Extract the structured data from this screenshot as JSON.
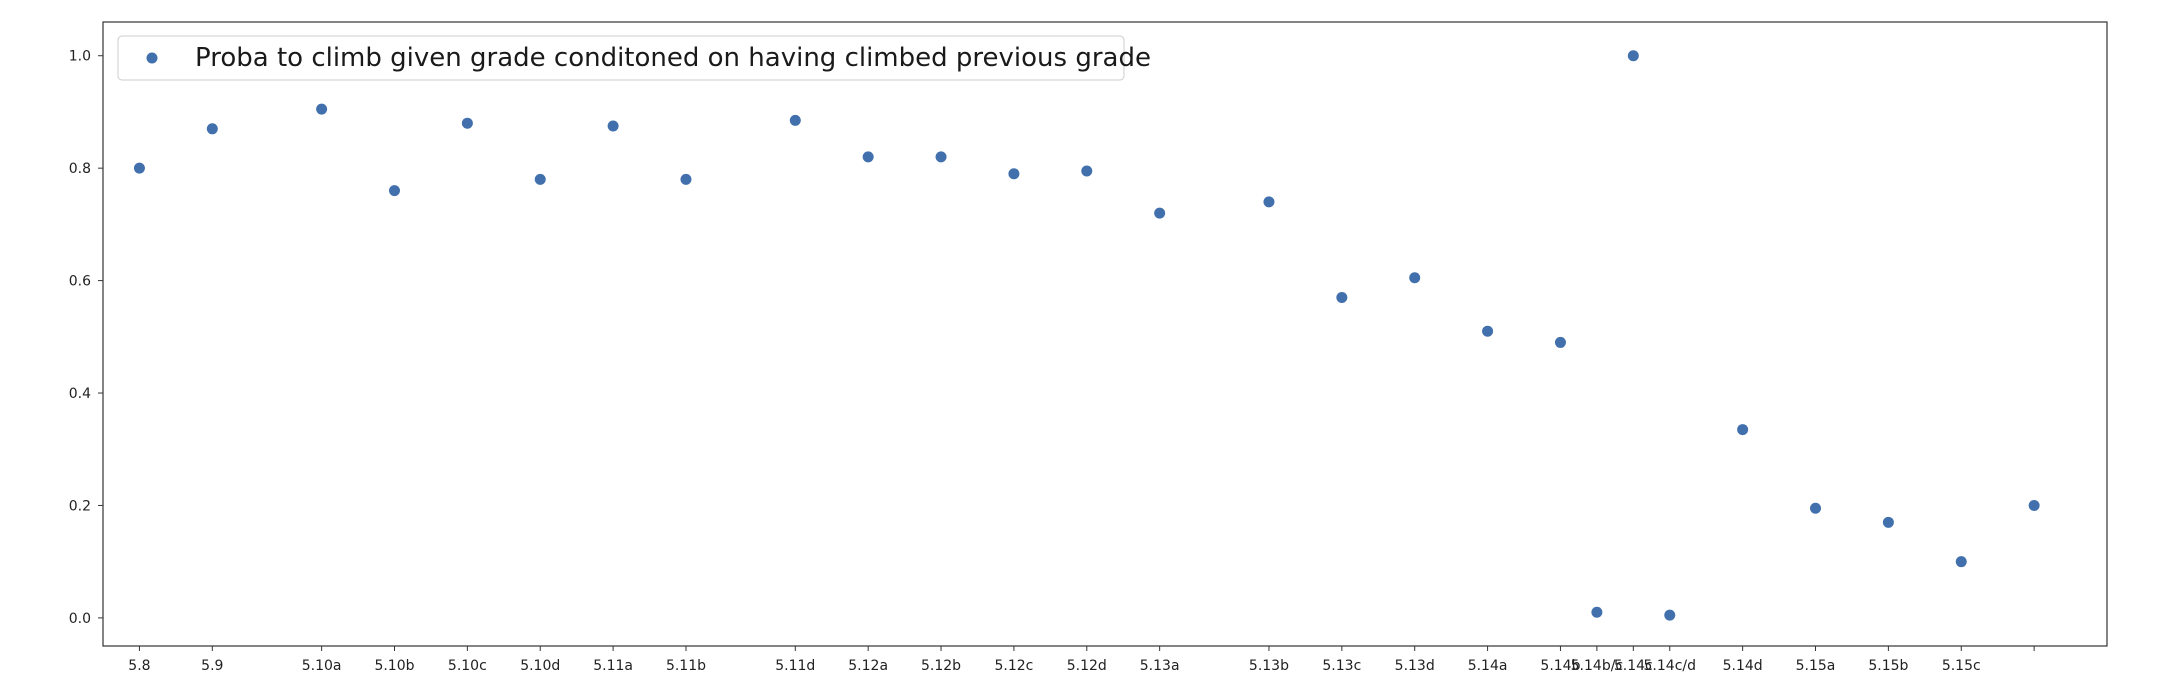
{
  "chart_data": {
    "type": "scatter",
    "title": "",
    "xlabel": "",
    "ylabel": "",
    "ylim": [
      -0.05,
      1.06
    ],
    "grid": false,
    "legend": {
      "placement": "upper-left"
    },
    "marker_color": "#4170ad",
    "series": [
      {
        "name": "Proba to climb given grade conditoned on having climbed previous grade",
        "x": [
          0,
          1,
          2.5,
          3.5,
          4.5,
          5.5,
          6.5,
          7.5,
          9,
          10,
          11,
          12,
          13,
          14,
          15.5,
          16.5,
          17.5,
          18.5,
          19.5,
          20,
          20.5,
          21,
          22,
          23,
          24,
          25,
          26
        ],
        "y": [
          0.8,
          0.87,
          0.905,
          0.76,
          0.88,
          0.78,
          0.875,
          0.78,
          0.885,
          0.82,
          0.82,
          0.79,
          0.795,
          0.72,
          0.74,
          0.57,
          0.605,
          0.51,
          0.49,
          0.01,
          1.0,
          0.005,
          0.335,
          0.195,
          0.17,
          0.1,
          0.2
        ]
      }
    ],
    "x_ticks": [
      {
        "pos": 0,
        "label": "5.8"
      },
      {
        "pos": 1,
        "label": "5.9"
      },
      {
        "pos": 2.5,
        "label": "5.10a"
      },
      {
        "pos": 3.5,
        "label": "5.10b"
      },
      {
        "pos": 4.5,
        "label": "5.10c"
      },
      {
        "pos": 5.5,
        "label": "5.10d"
      },
      {
        "pos": 6.5,
        "label": "5.11a"
      },
      {
        "pos": 7.5,
        "label": "5.11b"
      },
      {
        "pos": 9,
        "label": "5.11d"
      },
      {
        "pos": 10,
        "label": "5.12a"
      },
      {
        "pos": 11,
        "label": "5.12b"
      },
      {
        "pos": 12,
        "label": "5.12c"
      },
      {
        "pos": 13,
        "label": "5.12d"
      },
      {
        "pos": 14,
        "label": "5.13a"
      },
      {
        "pos": 15.5,
        "label": "5.13b"
      },
      {
        "pos": 16.5,
        "label": "5.13c"
      },
      {
        "pos": 17.5,
        "label": "5.13d"
      },
      {
        "pos": 18.5,
        "label": "5.14a"
      },
      {
        "pos": 19.5,
        "label": "5.14b"
      },
      {
        "pos": 20,
        "label": "5.14b/c"
      },
      {
        "pos": 20.5,
        "label": "5.14c"
      },
      {
        "pos": 21,
        "label": "5.14c/d"
      },
      {
        "pos": 22,
        "label": "5.14d"
      },
      {
        "pos": 23,
        "label": "5.15a"
      },
      {
        "pos": 24,
        "label": "5.15b"
      },
      {
        "pos": 25,
        "label": "5.15c"
      },
      {
        "pos": 26,
        "label": ""
      }
    ],
    "y_ticks": [
      "0.0",
      "0.2",
      "0.4",
      "0.6",
      "0.8",
      "1.0"
    ],
    "xlim": [
      -0.5,
      27
    ]
  }
}
